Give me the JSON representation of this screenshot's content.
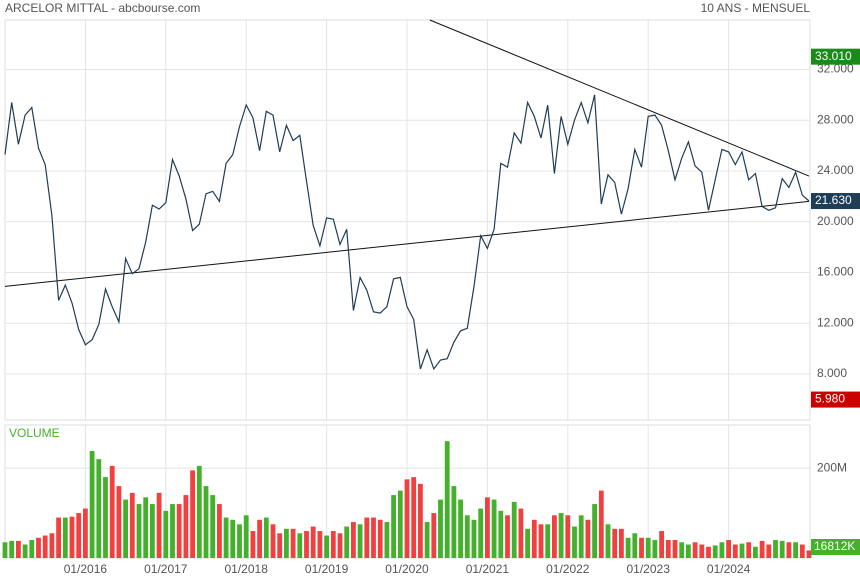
{
  "chart_data": {
    "type": "stock",
    "title": "ARCELOR MITTAL - abcbourse.com",
    "subtitle": "10 ANS - MENSUEL",
    "x": [
      "01/2015",
      "02/2015",
      "03/2015",
      "04/2015",
      "05/2015",
      "06/2015",
      "07/2015",
      "08/2015",
      "09/2015",
      "10/2015",
      "11/2015",
      "12/2015",
      "01/2016",
      "02/2016",
      "03/2016",
      "04/2016",
      "05/2016",
      "06/2016",
      "07/2016",
      "08/2016",
      "09/2016",
      "10/2016",
      "11/2016",
      "12/2016",
      "01/2017",
      "02/2017",
      "03/2017",
      "04/2017",
      "05/2017",
      "06/2017",
      "07/2017",
      "08/2017",
      "09/2017",
      "10/2017",
      "11/2017",
      "12/2017",
      "01/2018",
      "02/2018",
      "03/2018",
      "04/2018",
      "05/2018",
      "06/2018",
      "07/2018",
      "08/2018",
      "09/2018",
      "10/2018",
      "11/2018",
      "12/2018",
      "01/2019",
      "02/2019",
      "03/2019",
      "04/2019",
      "05/2019",
      "06/2019",
      "07/2019",
      "08/2019",
      "09/2019",
      "10/2019",
      "11/2019",
      "12/2019",
      "01/2020",
      "02/2020",
      "03/2020",
      "04/2020",
      "05/2020",
      "06/2020",
      "07/2020",
      "08/2020",
      "09/2020",
      "10/2020",
      "11/2020",
      "12/2020",
      "01/2021",
      "02/2021",
      "03/2021",
      "04/2021",
      "05/2021",
      "06/2021",
      "07/2021",
      "08/2021",
      "09/2021",
      "10/2021",
      "11/2021",
      "12/2021",
      "01/2022",
      "02/2022",
      "03/2022",
      "04/2022",
      "05/2022",
      "06/2022",
      "07/2022",
      "08/2022",
      "09/2022",
      "10/2022",
      "11/2022",
      "12/2022",
      "01/2023",
      "02/2023",
      "03/2023",
      "04/2023",
      "05/2023",
      "06/2023",
      "07/2023",
      "08/2023",
      "09/2023",
      "10/2023",
      "11/2023",
      "12/2023",
      "01/2024",
      "02/2024",
      "03/2024",
      "04/2024",
      "05/2024",
      "06/2024",
      "07/2024",
      "08/2024",
      "09/2024",
      "10/2024",
      "11/2024",
      "12/2024",
      "01/2025"
    ],
    "xticks": [
      "01/2016",
      "01/2017",
      "01/2018",
      "01/2019",
      "01/2020",
      "01/2021",
      "01/2022",
      "01/2023",
      "01/2024"
    ],
    "price": {
      "color": "#1e3d56",
      "values": [
        25.3,
        29.4,
        26.1,
        28.4,
        29.0,
        25.8,
        24.5,
        20.5,
        13.8,
        15.0,
        13.6,
        11.5,
        10.3,
        10.7,
        11.9,
        14.7,
        13.3,
        12.1,
        17.1,
        15.9,
        16.3,
        18.4,
        21.3,
        21.0,
        21.5,
        24.9,
        23.6,
        21.8,
        19.3,
        19.8,
        22.2,
        22.4,
        21.6,
        24.6,
        25.3,
        27.5,
        29.2,
        28.2,
        25.6,
        28.7,
        28.4,
        25.5,
        27.6,
        26.4,
        26.8,
        23.2,
        19.7,
        18.1,
        20.3,
        20.2,
        18.2,
        19.4,
        13.0,
        15.6,
        14.6,
        12.9,
        12.8,
        13.3,
        15.5,
        15.6,
        13.3,
        12.3,
        8.4,
        9.9,
        8.4,
        9.1,
        9.2,
        10.5,
        11.4,
        11.6,
        14.9,
        18.9,
        17.9,
        19.4,
        24.6,
        24.3,
        27.0,
        26.2,
        29.4,
        28.3,
        26.6,
        29.2,
        23.8,
        28.3,
        26.1,
        28.0,
        29.4,
        27.8,
        30.0,
        21.4,
        23.7,
        23.1,
        20.6,
        22.6,
        25.7,
        24.3,
        28.3,
        28.4,
        27.6,
        25.6,
        23.3,
        25.0,
        26.3,
        24.4,
        23.9,
        20.9,
        23.3,
        25.7,
        25.5,
        24.5,
        25.5,
        23.3,
        23.8,
        21.2,
        20.9,
        21.1,
        23.4,
        22.7,
        23.9,
        22.1,
        21.63
      ]
    },
    "ylim": [
      4.37,
      35.9
    ],
    "yticks": [
      {
        "value": 8,
        "label": "8.000"
      },
      {
        "value": 12,
        "label": "12.000"
      },
      {
        "value": 16,
        "label": "16.000"
      },
      {
        "value": 20,
        "label": "20.000"
      },
      {
        "value": 24,
        "label": "24.000"
      },
      {
        "value": 28,
        "label": "28.000"
      },
      {
        "value": 32,
        "label": "32.000"
      }
    ],
    "markers": [
      {
        "value": 33.01,
        "label": "33.010",
        "color": "#1a8a1a"
      },
      {
        "value": 21.63,
        "label": "21.630",
        "color": "#1e3d56"
      },
      {
        "value": 5.98,
        "label": "5.980",
        "color": "#cc0000"
      }
    ],
    "trendlines": [
      {
        "x": [
          63.4,
          120
        ],
        "values": [
          35.9,
          23.6
        ]
      },
      {
        "x": [
          0,
          120
        ],
        "values": [
          14.9,
          21.6
        ]
      }
    ],
    "volume": {
      "name": "VOLUME",
      "up_color": "#44b02c",
      "down_color": "#f04040",
      "values": [
        35,
        38,
        38,
        30,
        40,
        45,
        50,
        55,
        90,
        90,
        92,
        100,
        110,
        238,
        220,
        180,
        205,
        160,
        130,
        145,
        120,
        135,
        120,
        145,
        105,
        120,
        120,
        140,
        195,
        205,
        160,
        140,
        120,
        90,
        85,
        75,
        95,
        60,
        85,
        90,
        75,
        55,
        65,
        65,
        55,
        60,
        70,
        60,
        50,
        60,
        55,
        70,
        80,
        75,
        90,
        90,
        85,
        80,
        140,
        150,
        175,
        180,
        165,
        80,
        100,
        130,
        260,
        160,
        130,
        95,
        85,
        110,
        135,
        130,
        105,
        95,
        125,
        110,
        65,
        85,
        75,
        75,
        95,
        100,
        95,
        70,
        95,
        85,
        120,
        150,
        75,
        65,
        65,
        45,
        55,
        45,
        45,
        40,
        60,
        40,
        40,
        35,
        30,
        35,
        30,
        25,
        28,
        35,
        40,
        30,
        32,
        35,
        25,
        38,
        30,
        40,
        38,
        35,
        35,
        30,
        16.812
      ]
    },
    "volume_last_label": "16812K",
    "volume_ylim": [
      0,
      296
    ],
    "volume_yticks": [
      {
        "value": 200,
        "label": "200M"
      }
    ]
  }
}
